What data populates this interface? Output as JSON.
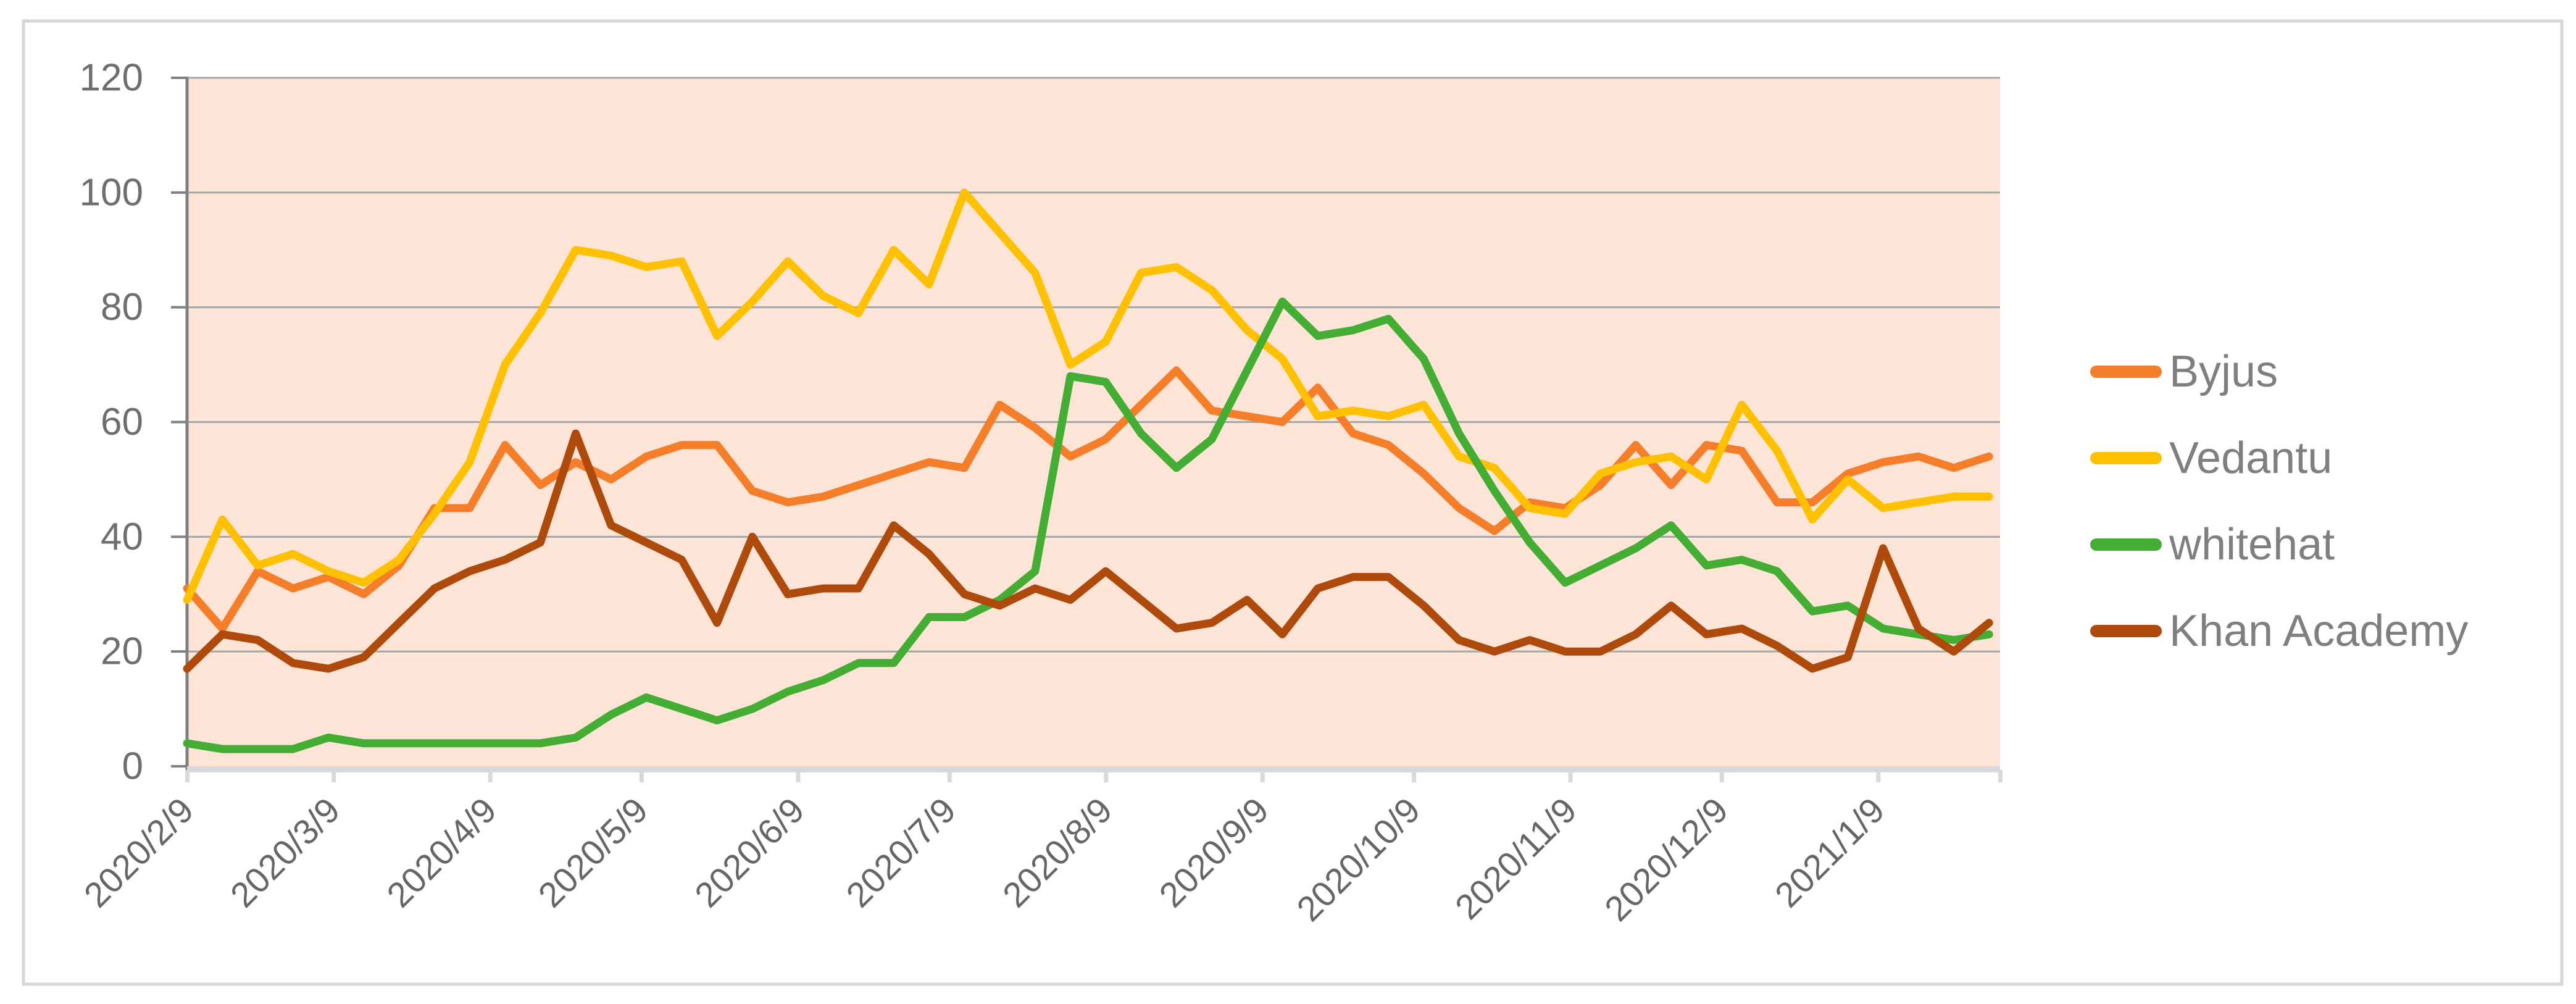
{
  "chart_data": {
    "type": "line",
    "title": "",
    "xlabel": "",
    "ylabel": "",
    "ylim": [
      0,
      120
    ],
    "y_ticks": [
      0,
      20,
      40,
      60,
      80,
      100,
      120
    ],
    "grid": true,
    "legend_position": "right",
    "x_tick_labels": [
      "2020/2/9",
      "2020/3/9",
      "2020/4/9",
      "2020/5/9",
      "2020/6/9",
      "2020/7/9",
      "2020/8/9",
      "2020/9/9",
      "2020/10/9",
      "2020/11/9",
      "2020/12/9",
      "2021/1/9"
    ],
    "x_dates": [
      "2020/2/9",
      "2020/2/16",
      "2020/2/23",
      "2020/3/1",
      "2020/3/8",
      "2020/3/15",
      "2020/3/22",
      "2020/3/29",
      "2020/4/5",
      "2020/4/12",
      "2020/4/19",
      "2020/4/26",
      "2020/5/3",
      "2020/5/10",
      "2020/5/17",
      "2020/5/24",
      "2020/5/31",
      "2020/6/7",
      "2020/6/14",
      "2020/6/21",
      "2020/6/28",
      "2020/7/5",
      "2020/7/12",
      "2020/7/19",
      "2020/7/26",
      "2020/8/2",
      "2020/8/9",
      "2020/8/16",
      "2020/8/23",
      "2020/8/30",
      "2020/9/6",
      "2020/9/13",
      "2020/9/20",
      "2020/9/27",
      "2020/10/4",
      "2020/10/11",
      "2020/10/18",
      "2020/10/25",
      "2020/11/1",
      "2020/11/8",
      "2020/11/15",
      "2020/11/22",
      "2020/11/29",
      "2020/12/6",
      "2020/12/13",
      "2020/12/20",
      "2020/12/27",
      "2021/1/3",
      "2021/1/10",
      "2021/1/17",
      "2021/1/24",
      "2021/1/31"
    ],
    "series": [
      {
        "name": "Byjus",
        "color": "#F57E2B",
        "values": [
          31,
          24,
          34,
          31,
          33,
          30,
          35,
          45,
          45,
          56,
          49,
          53,
          50,
          54,
          56,
          56,
          48,
          46,
          47,
          49,
          51,
          53,
          52,
          63,
          59,
          54,
          57,
          63,
          69,
          62,
          61,
          60,
          66,
          58,
          56,
          51,
          45,
          41,
          46,
          45,
          49,
          56,
          49,
          56,
          55,
          46,
          46,
          51,
          53,
          54,
          52,
          54
        ]
      },
      {
        "name": "Vedantu",
        "color": "#FFC000",
        "values": [
          29,
          43,
          35,
          37,
          34,
          32,
          36,
          44,
          53,
          70,
          79,
          90,
          89,
          87,
          88,
          75,
          81,
          88,
          82,
          79,
          90,
          84,
          100,
          93,
          86,
          70,
          74,
          86,
          87,
          83,
          76,
          71,
          61,
          62,
          61,
          63,
          54,
          52,
          45,
          44,
          51,
          53,
          54,
          50,
          63,
          55,
          43,
          50,
          45,
          46,
          47,
          47
        ]
      },
      {
        "name": "whitehat",
        "color": "#44AD34",
        "values": [
          4,
          3,
          3,
          3,
          5,
          4,
          4,
          4,
          4,
          4,
          4,
          5,
          9,
          12,
          10,
          8,
          10,
          13,
          15,
          18,
          18,
          26,
          26,
          29,
          34,
          68,
          67,
          58,
          52,
          57,
          69,
          81,
          75,
          76,
          78,
          71,
          58,
          48,
          39,
          32,
          35,
          38,
          42,
          35,
          36,
          34,
          27,
          28,
          24,
          23,
          22,
          23
        ]
      },
      {
        "name": "Khan Academy",
        "color": "#AE4A0C",
        "values": [
          17,
          23,
          22,
          18,
          17,
          19,
          25,
          31,
          34,
          36,
          39,
          58,
          42,
          39,
          36,
          25,
          40,
          30,
          31,
          31,
          42,
          37,
          30,
          28,
          31,
          29,
          34,
          29,
          24,
          25,
          29,
          23,
          31,
          33,
          33,
          28,
          22,
          20,
          22,
          20,
          20,
          23,
          28,
          23,
          24,
          21,
          17,
          19,
          38,
          24,
          20,
          25
        ]
      }
    ],
    "colors": {
      "plot_bg": "#FCE4D6",
      "grid": "#A6A6A6",
      "y_axis_line": "#808080",
      "x_axis_band": "#D9D9D9",
      "x_tick": "#D9D9D9",
      "axis_label": "#6E6E6E",
      "date_label": "#666666",
      "legend_text": "#7F7F7F",
      "outer_border": "#D6D6D6",
      "background": "#FFFFFF"
    }
  }
}
